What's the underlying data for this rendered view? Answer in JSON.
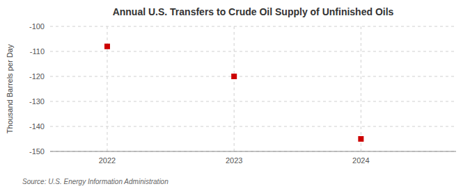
{
  "chart_data": {
    "type": "scatter",
    "title": "Annual U.S. Transfers to Crude Oil Supply of Unfinished Oils",
    "ylabel": "Thousand Barrels per Day",
    "source": "Source: U.S. Energy Information Administration",
    "x": [
      2022,
      2023,
      2024
    ],
    "values": [
      -108,
      -120,
      -145
    ],
    "color": "#cc0000",
    "marker": "square",
    "xlim": [
      2021.55,
      2024.75
    ],
    "xticks": [
      2022,
      2023,
      2024
    ],
    "ylim": [
      -150,
      -100
    ],
    "yticks": [
      -100,
      -110,
      -120,
      -130,
      -140,
      -150
    ],
    "grid": true
  }
}
